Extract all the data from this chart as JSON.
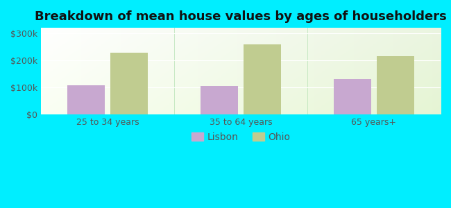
{
  "title": "Breakdown of mean house values by ages of householders",
  "categories": [
    "25 to 34 years",
    "35 to 64 years",
    "65 years+"
  ],
  "lisbon_values": [
    108000,
    105000,
    130000
  ],
  "ohio_values": [
    228000,
    258000,
    215000
  ],
  "lisbon_color": "#c8a8d0",
  "ohio_color": "#c0cc90",
  "ylim": [
    0,
    320000
  ],
  "yticks": [
    0,
    100000,
    200000,
    300000
  ],
  "ytick_labels": [
    "$0",
    "$100k",
    "$200k",
    "$300k"
  ],
  "bar_width": 0.28,
  "background_color": "#00eeff",
  "legend_labels": [
    "Lisbon",
    "Ohio"
  ],
  "title_fontsize": 13,
  "tick_fontsize": 9,
  "legend_fontsize": 10
}
